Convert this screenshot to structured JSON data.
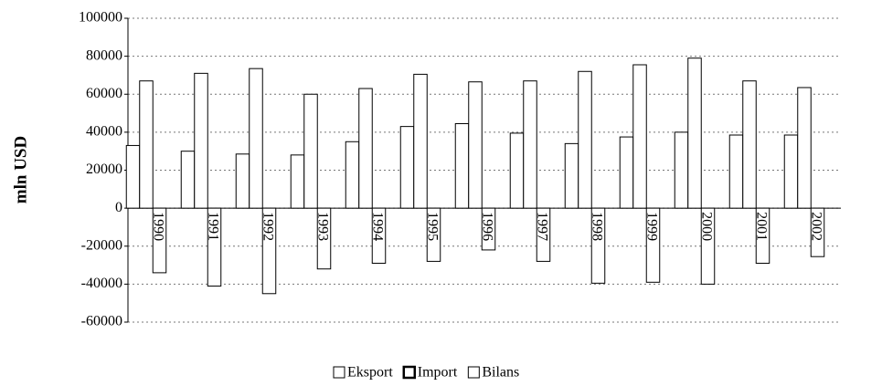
{
  "chart_data": {
    "type": "bar",
    "ylabel": "mln USD",
    "categories": [
      "1990",
      "1991",
      "1992",
      "1993",
      "1994",
      "1995",
      "1996",
      "1997",
      "1998",
      "1999",
      "2000",
      "2001",
      "2002"
    ],
    "series": [
      {
        "name": "Eksport",
        "color": "#ffffff",
        "values": [
          33000,
          30000,
          28500,
          28000,
          35000,
          43000,
          44500,
          39500,
          34000,
          37500,
          40000,
          38500,
          38500
        ]
      },
      {
        "name": "Import",
        "color": "#ffffff",
        "values": [
          67000,
          71000,
          73500,
          60000,
          63000,
          70500,
          66500,
          67000,
          72000,
          75500,
          79000,
          67000,
          63500
        ]
      },
      {
        "name": "Bilans",
        "color": "#ffffff",
        "values": [
          -34000,
          -41000,
          -45000,
          -32000,
          -29000,
          -28000,
          -22000,
          -28000,
          -39500,
          -39000,
          -40000,
          -29000,
          -25500
        ]
      }
    ],
    "ylim": [
      -60000,
      100000
    ],
    "yticks": [
      -60000,
      -40000,
      -20000,
      0,
      20000,
      40000,
      60000,
      80000,
      100000
    ],
    "grid": true,
    "legend": "bottom"
  }
}
